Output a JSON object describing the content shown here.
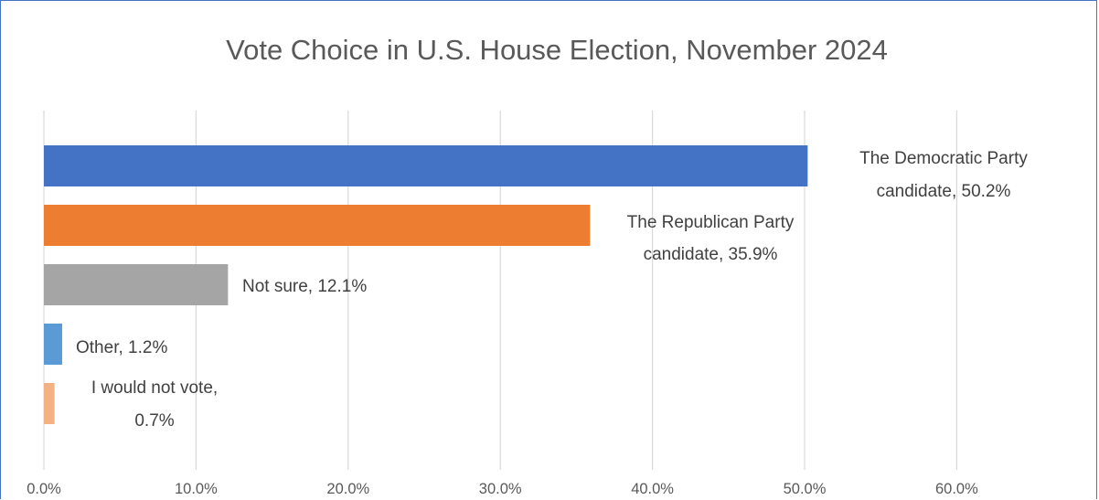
{
  "chart_data": {
    "type": "bar",
    "orientation": "horizontal",
    "title": "Vote Choice in U.S. House Election, November 2024",
    "xlabel": "",
    "ylabel": "",
    "xlim": [
      0,
      67
    ],
    "x_ticks": [
      0,
      10,
      20,
      30,
      40,
      50,
      60
    ],
    "x_tick_labels": [
      "0.0%",
      "10.0%",
      "20.0%",
      "30.0%",
      "40.0%",
      "50.0%",
      "60.0%"
    ],
    "grid": "vertical gridlines on",
    "legend": "none",
    "categories": [
      "The Democratic Party candidate",
      "The Republican Party candidate",
      "Not sure",
      "Other",
      "I would not vote"
    ],
    "values": [
      50.2,
      35.9,
      12.1,
      1.2,
      0.7
    ],
    "value_labels": [
      "50.2%",
      "35.9%",
      "12.1%",
      "1.2%",
      "0.7%"
    ],
    "data_labels": [
      [
        "The Democratic Party",
        "candidate, 50.2%"
      ],
      [
        "The Republican Party",
        "candidate, 35.9%"
      ],
      [
        "Not sure, 12.1%"
      ],
      [
        "Other, 1.2%"
      ],
      [
        "I would not vote,",
        "0.7%"
      ]
    ],
    "colors": [
      "#4472c4",
      "#ed7d31",
      "#a5a5a5",
      "#5b9bd5",
      "#f4b183"
    ],
    "gridline_color": "#d9d9d9",
    "frame_color": "#4472c4"
  }
}
